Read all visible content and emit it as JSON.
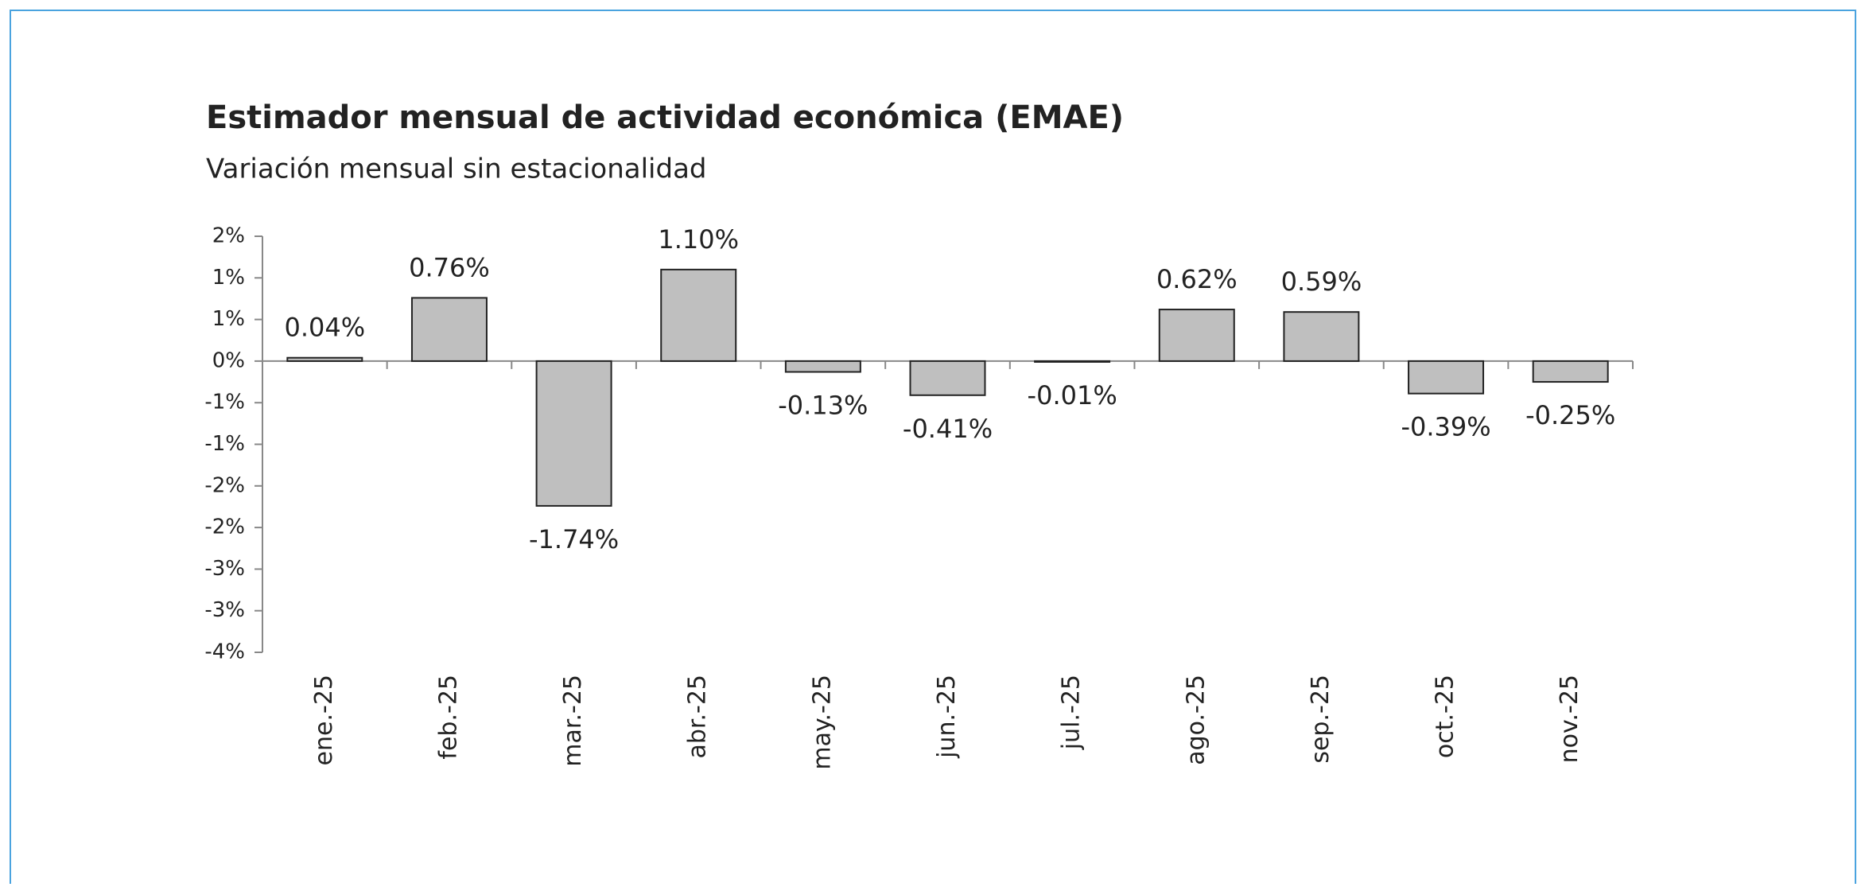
{
  "chart_data": {
    "type": "bar",
    "title": "Estimador mensual de actividad económica (EMAE)",
    "subtitle": "Variación mensual sin estacionalidad",
    "categories": [
      "ene.-25",
      "feb.-25",
      "mar.-25",
      "abr.-25",
      "may.-25",
      "jun.-25",
      "jul.-25",
      "ago.-25",
      "sep.-25",
      "oct.-25",
      "nov.-25"
    ],
    "values": [
      0.04,
      0.76,
      -1.74,
      1.1,
      -0.13,
      -0.41,
      -0.01,
      0.62,
      0.59,
      -0.39,
      -0.25
    ],
    "value_labels": [
      "0.04%",
      "0.76%",
      "-1.74%",
      "1.10%",
      "-0.13%",
      "-0.41%",
      "-0.01%",
      "0.62%",
      "0.59%",
      "-0.39%",
      "-0.25%"
    ],
    "color": "#bfbfbf",
    "ylim": [
      -3.5,
      1.5
    ],
    "yticks": [
      {
        "value": 1.5,
        "label": "2%"
      },
      {
        "value": 1,
        "label": "1%"
      },
      {
        "value": 0.5,
        "label": "1%"
      },
      {
        "value": 0,
        "label": "0%"
      },
      {
        "value": -0.5,
        "label": "-1%"
      },
      {
        "value": -1,
        "label": "-1%"
      },
      {
        "value": -1.5,
        "label": "-2%"
      },
      {
        "value": -2,
        "label": "-2%"
      },
      {
        "value": -2.5,
        "label": "-3%"
      },
      {
        "value": -3,
        "label": "-3%"
      },
      {
        "value": -3.5,
        "label": "-4%"
      }
    ],
    "grid": false
  }
}
